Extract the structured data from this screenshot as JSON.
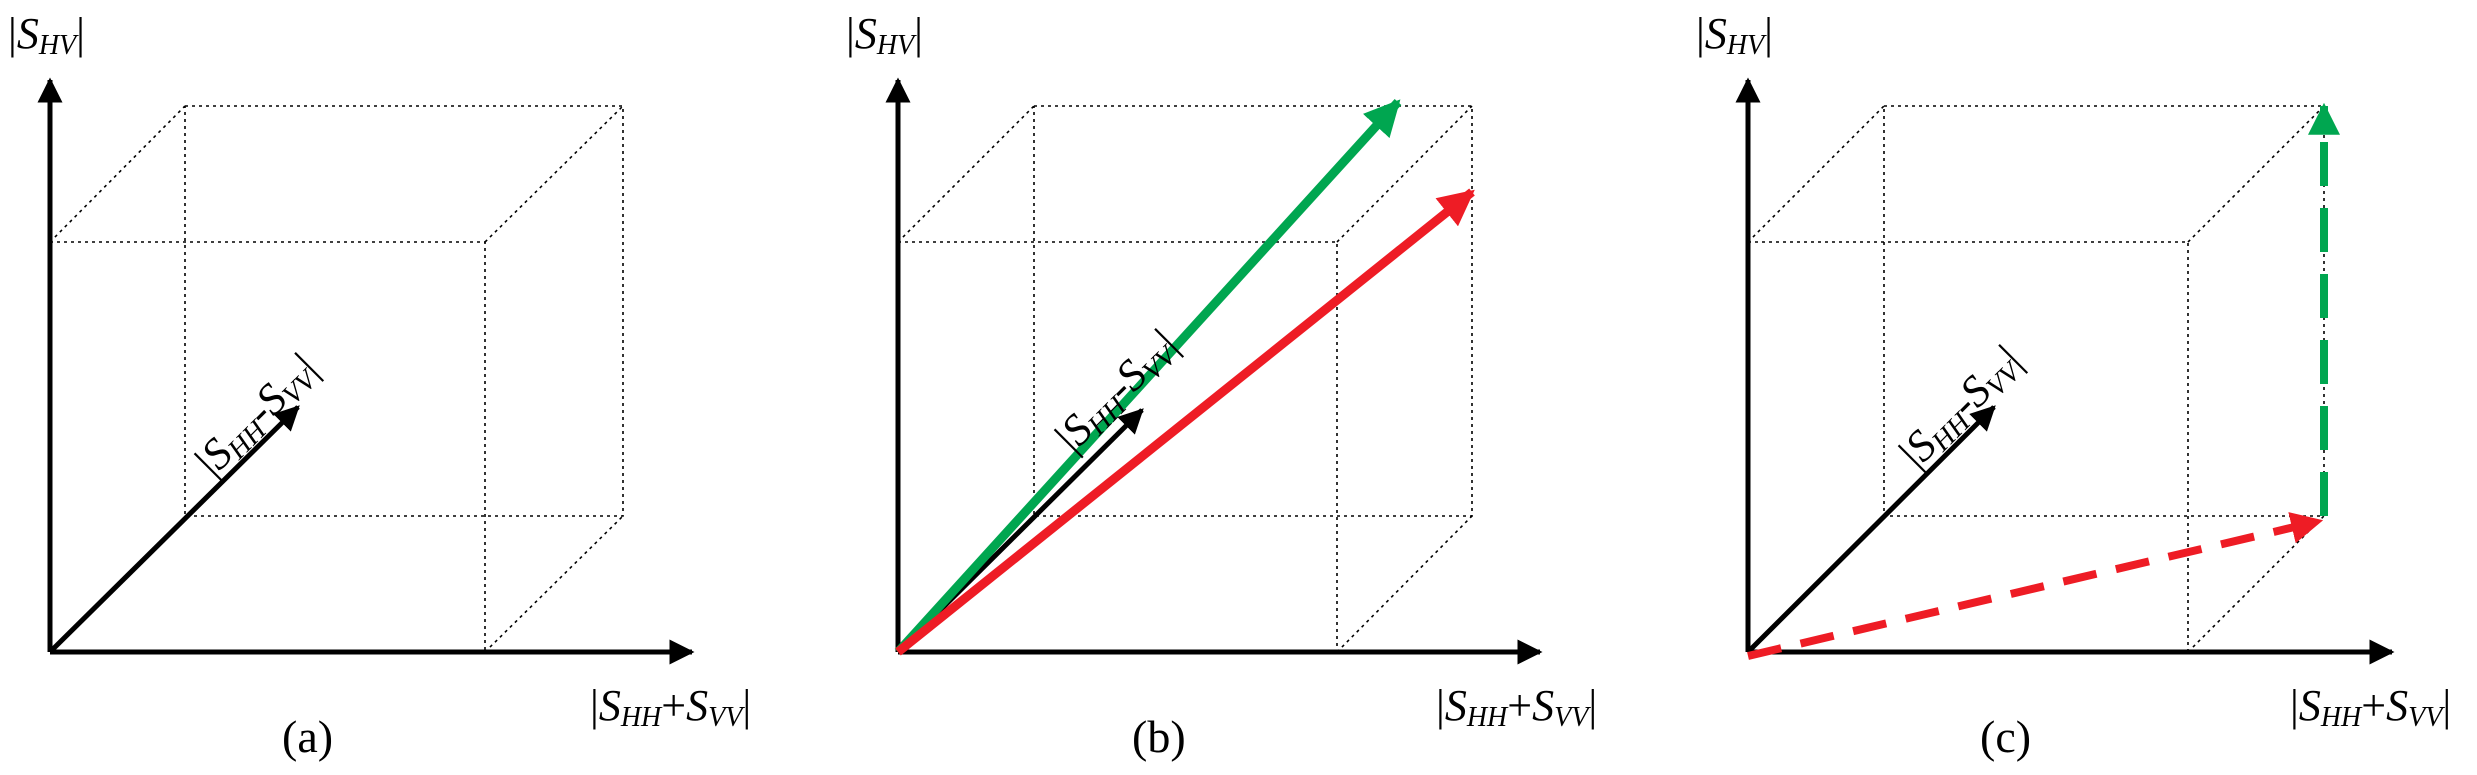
{
  "panels": [
    {
      "id": "a",
      "caption": "(a)",
      "labels": {
        "y_axis": {
          "bar_open": "|",
          "main": "S",
          "sub": "HV",
          "bar_close": "|"
        },
        "x_axis": {
          "bar_open": "|",
          "main1": "S",
          "sub1": "HH",
          "op": "+",
          "main2": "S",
          "sub2": "VV",
          "bar_close": "|"
        },
        "depth_axis": {
          "bar_open": "|",
          "main1": "S",
          "sub1": "HH",
          "op": "-",
          "main2": "S",
          "sub2": "VV",
          "bar_close": "|"
        }
      },
      "vectors": []
    },
    {
      "id": "b",
      "caption": "(b)",
      "labels": {
        "y_axis": {
          "bar_open": "|",
          "main": "S",
          "sub": "HV",
          "bar_close": "|"
        },
        "x_axis": {
          "bar_open": "|",
          "main1": "S",
          "sub1": "HH",
          "op": "+",
          "main2": "S",
          "sub2": "VV",
          "bar_close": "|"
        },
        "depth_axis": {
          "bar_open": "|",
          "main1": "S",
          "sub1": "HH",
          "op": "-",
          "main2": "S",
          "sub2": "VV",
          "bar_close": "|"
        }
      },
      "vectors": [
        {
          "color": "#00a650",
          "style": "solid"
        },
        {
          "color": "#ee1c25",
          "style": "solid"
        }
      ]
    },
    {
      "id": "c",
      "caption": "(c)",
      "labels": {
        "y_axis": {
          "bar_open": "|",
          "main": "S",
          "sub": "HV",
          "bar_close": "|"
        },
        "x_axis": {
          "bar_open": "|",
          "main1": "S",
          "sub1": "HH",
          "op": "+",
          "main2": "S",
          "sub2": "VV",
          "bar_close": "|"
        },
        "depth_axis": {
          "bar_open": "|",
          "main1": "S",
          "sub1": "HH",
          "op": "-",
          "main2": "S",
          "sub2": "VV",
          "bar_close": "|"
        }
      },
      "vectors": [
        {
          "color": "#ee1c25",
          "style": "dashed"
        },
        {
          "color": "#00a650",
          "style": "dashed"
        }
      ]
    }
  ]
}
